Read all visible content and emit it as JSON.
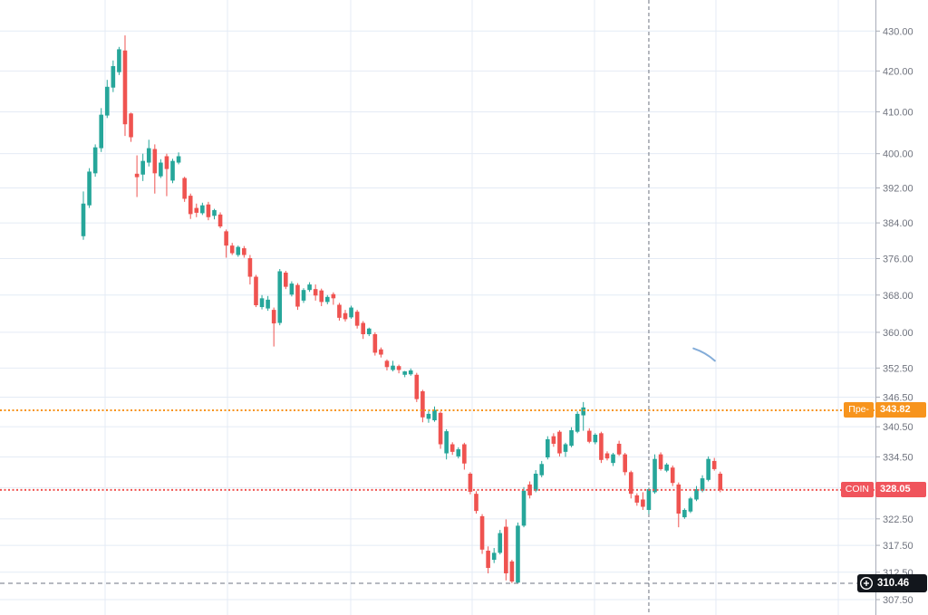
{
  "chart_data": {
    "type": "candlestick",
    "title": "",
    "symbol": "COIN",
    "scale": "log",
    "grid": true,
    "legend": false,
    "ylim": [
      306.5,
      432.5
    ],
    "y_ticks": [
      {
        "value": 430.0,
        "label": "430.00"
      },
      {
        "value": 420.0,
        "label": "420.00"
      },
      {
        "value": 410.0,
        "label": "410.00"
      },
      {
        "value": 400.0,
        "label": "400.00"
      },
      {
        "value": 392.0,
        "label": "392.00"
      },
      {
        "value": 384.0,
        "label": "384.00"
      },
      {
        "value": 376.0,
        "label": "376.00"
      },
      {
        "value": 368.0,
        "label": "368.00"
      },
      {
        "value": 360.0,
        "label": "360.00"
      },
      {
        "value": 352.5,
        "label": "352.50"
      },
      {
        "value": 346.5,
        "label": "346.50"
      },
      {
        "value": 340.5,
        "label": "340.50"
      },
      {
        "value": 334.5,
        "label": "334.50"
      },
      {
        "value": 328.5,
        "label": "328.50"
      },
      {
        "value": 322.5,
        "label": "322.50"
      },
      {
        "value": 317.5,
        "label": "317.50"
      },
      {
        "value": 312.5,
        "label": "312.50"
      },
      {
        "value": 307.5,
        "label": "307.50"
      }
    ],
    "price_lines": [
      {
        "name": "premarket",
        "label": "Пре-",
        "price": 343.82,
        "price_text": "343.82",
        "line_color": "#f7941d",
        "label_bg": "#f7941d",
        "style": "dotted"
      },
      {
        "name": "last",
        "label": "COIN",
        "price": 328.05,
        "price_text": "328.05",
        "line_color": "#ef5350",
        "label_bg": "#f0545c",
        "style": "dotted"
      },
      {
        "name": "low-marker",
        "label": "",
        "price": 310.46,
        "price_text": "310.46",
        "line_color": "#6c7380",
        "label_bg": "#12161c",
        "style": "dashed",
        "icon": "circled-plus"
      }
    ],
    "session_divider_index": 95,
    "brush_drawing": {
      "type": "brush",
      "color": "#6d9dd1",
      "from_index": 102.5,
      "from_price": 356.6,
      "to_index": 106.1,
      "to_price": 354.0
    },
    "colors": {
      "up": "#26a69a",
      "down": "#ef5350",
      "grid": "#e4ebf5",
      "axis_line": "#a8adb8",
      "axis_text": "#6f737e",
      "divider": "#6c7380",
      "background": "#ffffff"
    },
    "series": [
      {
        "name": "COIN",
        "ohlc": [
          [
            381.0,
            391.2,
            380.2,
            388.4
          ],
          [
            388.0,
            396.6,
            387.4,
            395.8
          ],
          [
            395.4,
            402.2,
            394.6,
            401.5
          ],
          [
            401.3,
            410.9,
            400.4,
            409.3
          ],
          [
            409.1,
            417.8,
            408.5,
            416.1
          ],
          [
            415.9,
            422.6,
            414.8,
            421.2
          ],
          [
            419.7,
            426.0,
            419.0,
            425.4
          ],
          [
            425.1,
            428.9,
            404.2,
            407.0
          ],
          [
            409.6,
            409.8,
            402.8,
            403.9
          ],
          [
            395.3,
            399.6,
            389.9,
            394.5
          ],
          [
            395.1,
            400.0,
            393.6,
            398.3
          ],
          [
            397.9,
            403.3,
            397.0,
            401.3
          ],
          [
            401.1,
            402.2,
            390.7,
            395.4
          ],
          [
            394.7,
            398.7,
            394.3,
            397.9
          ],
          [
            399.4,
            400.0,
            390.1,
            396.4
          ],
          [
            393.7,
            398.8,
            393.1,
            398.3
          ],
          [
            397.9,
            400.3,
            397.5,
            399.4
          ],
          [
            394.3,
            394.6,
            388.8,
            389.5
          ],
          [
            390.2,
            390.7,
            384.9,
            386.0
          ],
          [
            387.4,
            388.4,
            385.3,
            386.3
          ],
          [
            386.2,
            388.6,
            385.8,
            388.0
          ],
          [
            388.2,
            388.8,
            384.6,
            385.3
          ],
          [
            385.6,
            387.2,
            384.8,
            386.9
          ],
          [
            385.9,
            386.4,
            382.8,
            383.2
          ],
          [
            382.1,
            382.5,
            376.2,
            378.9
          ],
          [
            378.9,
            379.5,
            376.8,
            377.2
          ],
          [
            376.8,
            378.9,
            376.4,
            378.6
          ],
          [
            378.3,
            378.8,
            376.2,
            376.8
          ],
          [
            376.1,
            376.8,
            370.3,
            372.0
          ],
          [
            372.0,
            372.4,
            365.4,
            365.8
          ],
          [
            365.4,
            368.0,
            364.9,
            367.3
          ],
          [
            365.1,
            367.8,
            364.6,
            367.0
          ],
          [
            364.8,
            365.3,
            357.0,
            361.9
          ],
          [
            362.0,
            373.7,
            361.5,
            373.2
          ],
          [
            372.9,
            373.3,
            369.3,
            369.8
          ],
          [
            368.1,
            371.0,
            367.7,
            370.5
          ],
          [
            370.2,
            370.6,
            364.8,
            365.5
          ],
          [
            366.8,
            369.5,
            366.3,
            369.1
          ],
          [
            369.1,
            370.8,
            368.7,
            370.3
          ],
          [
            369.3,
            370.3,
            366.8,
            367.9
          ],
          [
            369.0,
            369.4,
            365.6,
            366.5
          ],
          [
            366.5,
            368.0,
            366.0,
            367.6
          ],
          [
            368.2,
            368.6,
            365.9,
            367.3
          ],
          [
            365.9,
            366.3,
            362.5,
            363.1
          ],
          [
            364.1,
            364.8,
            362.3,
            362.8
          ],
          [
            363.2,
            365.7,
            362.9,
            365.3
          ],
          [
            364.4,
            364.8,
            360.8,
            361.4
          ],
          [
            362.0,
            362.4,
            358.6,
            359.6
          ],
          [
            359.6,
            361.0,
            359.2,
            360.8
          ],
          [
            359.6,
            360.0,
            355.1,
            355.7
          ],
          [
            356.4,
            356.8,
            354.7,
            355.3
          ],
          [
            354.0,
            354.3,
            352.0,
            352.7
          ],
          [
            352.1,
            354.0,
            351.8,
            353.0
          ],
          [
            352.9,
            353.2,
            351.4,
            352.1
          ],
          [
            351.1,
            351.9,
            350.6,
            351.8
          ],
          [
            351.2,
            352.4,
            350.9,
            352.0
          ],
          [
            351.1,
            351.5,
            345.5,
            346.1
          ],
          [
            347.7,
            348.0,
            341.4,
            342.4
          ],
          [
            342.1,
            343.9,
            341.3,
            343.1
          ],
          [
            341.8,
            344.6,
            341.5,
            343.9
          ],
          [
            343.3,
            343.6,
            336.1,
            337.0
          ],
          [
            335.2,
            340.0,
            334.0,
            339.6
          ],
          [
            337.0,
            337.4,
            334.9,
            335.5
          ],
          [
            334.6,
            336.4,
            334.2,
            336.0
          ],
          [
            337.0,
            337.3,
            332.0,
            333.2
          ],
          [
            331.2,
            331.5,
            327.2,
            327.7
          ],
          [
            327.3,
            327.8,
            323.5,
            324.0
          ],
          [
            323.0,
            323.4,
            315.9,
            316.7
          ],
          [
            316.5,
            317.3,
            312.3,
            313.3
          ],
          [
            314.8,
            317.0,
            314.2,
            316.1
          ],
          [
            316.1,
            320.4,
            315.8,
            319.8
          ],
          [
            321.0,
            322.4,
            311.0,
            312.3
          ],
          [
            314.5,
            314.8,
            310.5,
            310.8
          ],
          [
            310.6,
            321.8,
            310.4,
            321.2
          ],
          [
            321.2,
            328.6,
            320.9,
            327.9
          ],
          [
            329.1,
            329.7,
            326.4,
            327.0
          ],
          [
            327.9,
            331.9,
            327.6,
            331.2
          ],
          [
            330.9,
            333.7,
            330.5,
            333.1
          ],
          [
            334.4,
            338.6,
            334.0,
            338.0
          ],
          [
            338.6,
            339.2,
            336.5,
            337.1
          ],
          [
            339.5,
            339.8,
            334.6,
            335.2
          ],
          [
            335.5,
            337.3,
            334.5,
            337.0
          ],
          [
            336.7,
            340.4,
            336.4,
            339.8
          ],
          [
            339.5,
            343.6,
            339.2,
            343.1
          ],
          [
            342.8,
            345.5,
            339.7,
            344.4
          ],
          [
            339.7,
            340.2,
            337.2,
            337.5
          ],
          [
            337.4,
            339.2,
            337.0,
            338.9
          ],
          [
            339.2,
            339.5,
            333.3,
            333.9
          ],
          [
            335.2,
            335.6,
            333.8,
            334.2
          ],
          [
            333.3,
            335.3,
            332.7,
            335.0
          ],
          [
            337.1,
            337.7,
            334.7,
            335.0
          ],
          [
            335.0,
            335.3,
            330.9,
            331.5
          ],
          [
            331.5,
            331.8,
            326.4,
            327.3
          ],
          [
            327.0,
            327.4,
            325.0,
            325.6
          ],
          [
            326.2,
            327.6,
            324.2,
            324.8
          ],
          [
            324.2,
            328.5,
            323.4,
            328.2
          ],
          [
            327.6,
            335.0,
            327.3,
            334.1
          ],
          [
            335.0,
            335.4,
            331.8,
            332.1
          ],
          [
            331.8,
            333.3,
            331.5,
            333.0
          ],
          [
            332.4,
            332.8,
            328.8,
            329.4
          ],
          [
            329.1,
            329.5,
            320.9,
            323.5
          ],
          [
            322.8,
            324.5,
            322.5,
            324.2
          ],
          [
            323.9,
            326.7,
            323.6,
            326.4
          ],
          [
            326.2,
            328.8,
            325.9,
            328.2
          ],
          [
            327.9,
            330.9,
            327.6,
            330.3
          ],
          [
            330.0,
            334.6,
            329.7,
            334.1
          ],
          [
            333.7,
            334.3,
            331.8,
            332.1
          ],
          [
            331.2,
            331.6,
            327.6,
            328.05
          ]
        ]
      }
    ]
  }
}
